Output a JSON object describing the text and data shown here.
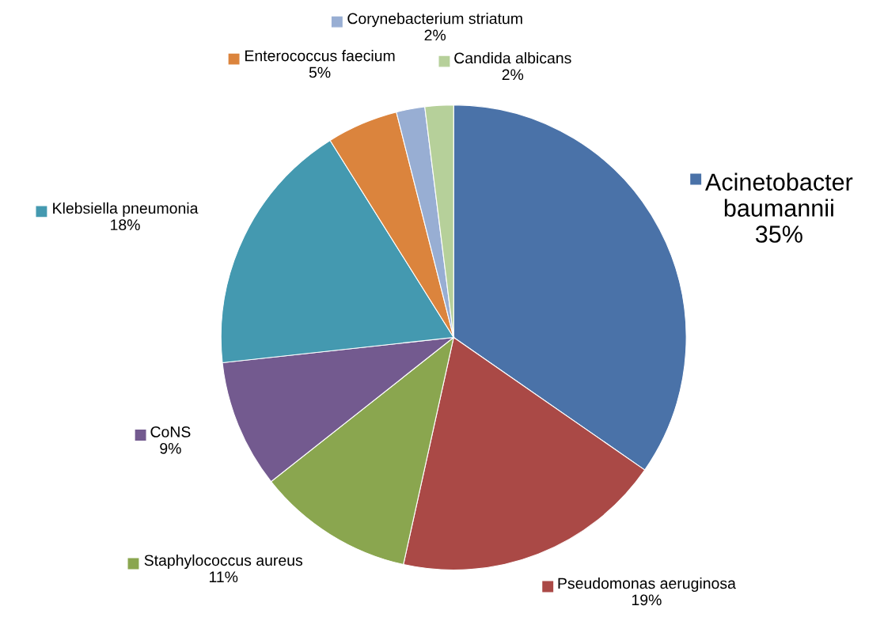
{
  "chart_data": {
    "type": "pie",
    "categories": [
      "Acinetobacter baumannii",
      "Pseudomonas aeruginosa",
      "Staphylococcus aureus",
      "CoNS",
      "Klebsiella pneumonia",
      "Enterococcus faecium",
      "Corynebacterium striatum",
      "Candida albicans"
    ],
    "values": [
      35,
      19,
      11,
      9,
      18,
      5,
      2,
      2
    ],
    "value_labels": [
      "35%",
      "19%",
      "11%",
      "9%",
      "18%",
      "5%",
      "2%",
      "2%"
    ],
    "colors": [
      "#4a72a8",
      "#aa4946",
      "#8aa64f",
      "#735a8f",
      "#4499b0",
      "#db843d",
      "#98aed3",
      "#b6d09a"
    ],
    "legend": "top left"
  }
}
